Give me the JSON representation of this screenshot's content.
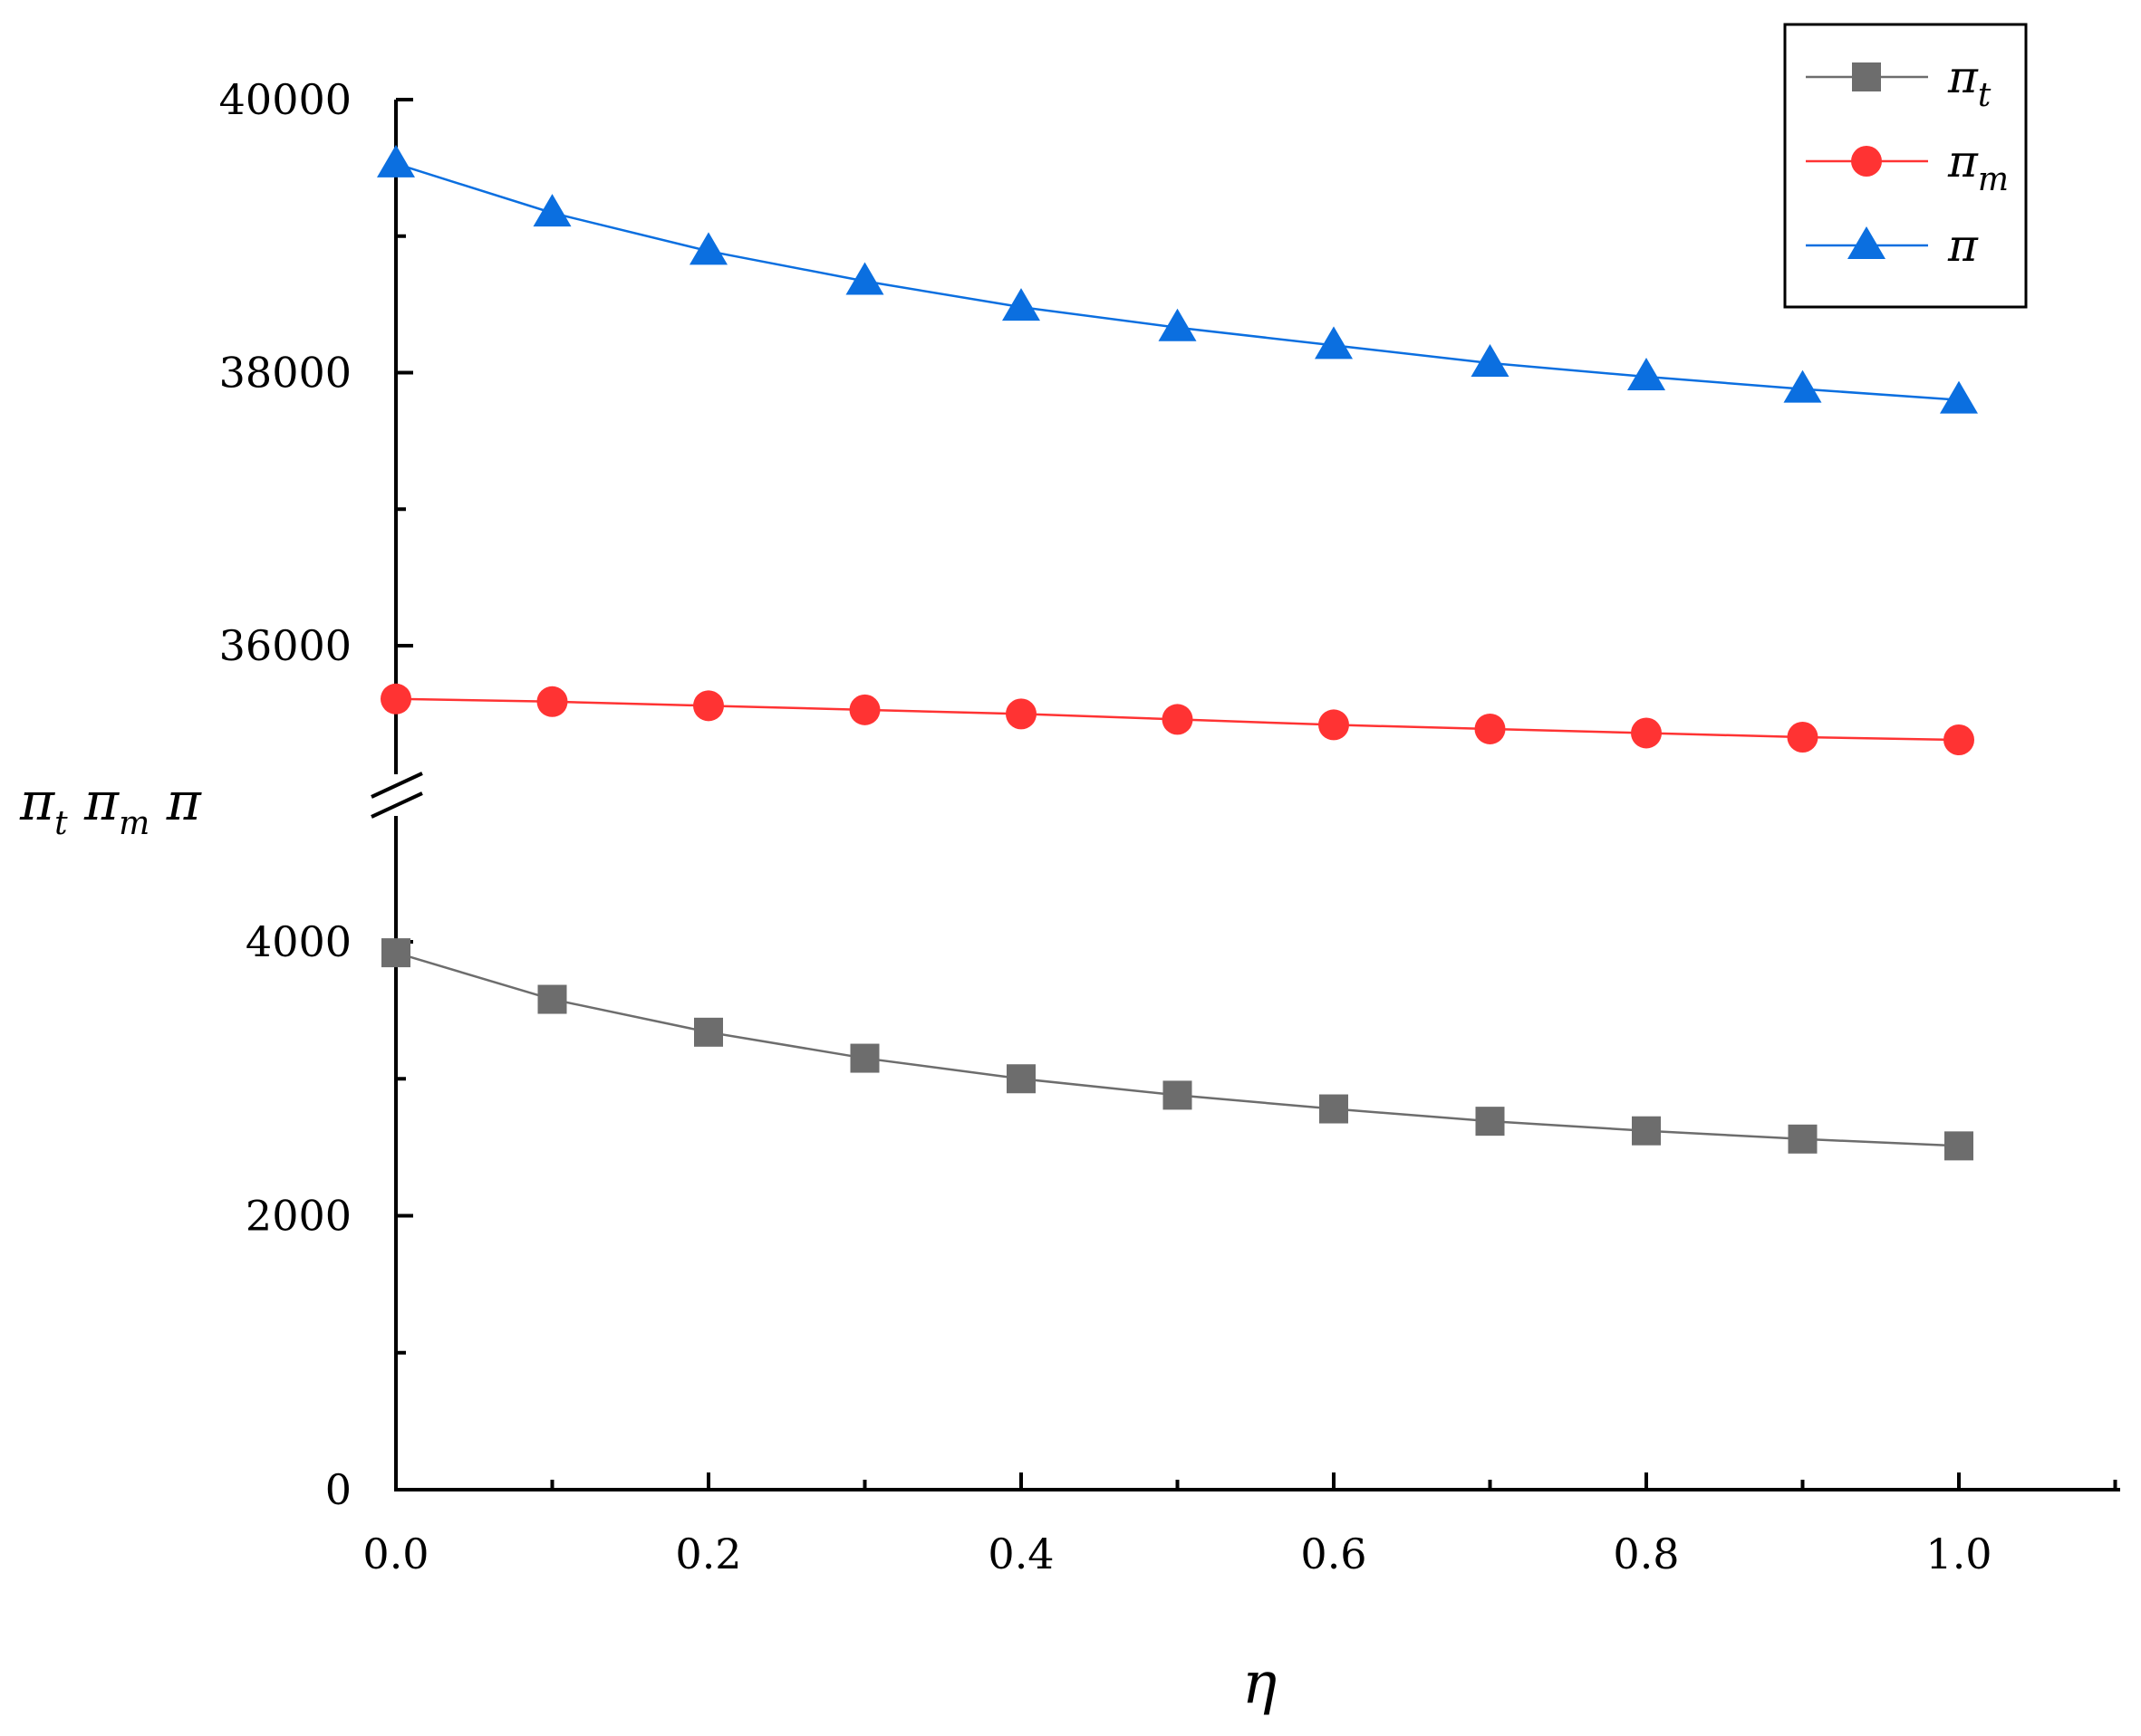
{
  "chart_data": {
    "type": "line",
    "x_label": "η",
    "y_label_parts": [
      {
        "base": "π",
        "sub": "t"
      },
      {
        "base": "π",
        "sub": "m"
      },
      {
        "base": "π",
        "sub": ""
      }
    ],
    "x": [
      0.0,
      0.1,
      0.2,
      0.3,
      0.4,
      0.5,
      0.6,
      0.7,
      0.8,
      0.9,
      1.0
    ],
    "x_ticks": [
      "0.0",
      "0.2",
      "0.4",
      "0.6",
      "0.8",
      "1.0"
    ],
    "xlim": [
      0.0,
      1.1
    ],
    "y_axis_break": true,
    "y_segments": {
      "lower": {
        "range": [
          0,
          4800
        ],
        "ticks": [
          "0",
          "2000",
          "4000"
        ]
      },
      "upper": {
        "range": [
          35100,
          40200
        ],
        "ticks": [
          "36000",
          "38000",
          "40000"
        ]
      }
    },
    "series": [
      {
        "name": "π_t",
        "legend_base": "π",
        "legend_sub": "t",
        "color": "#6d6d6d",
        "marker": "square",
        "segment": "lower",
        "values": [
          3920,
          3580,
          3340,
          3150,
          3000,
          2880,
          2780,
          2690,
          2620,
          2560,
          2510
        ]
      },
      {
        "name": "π_m",
        "legend_base": "π",
        "legend_sub": "m",
        "color": "#ff3333",
        "marker": "circle",
        "segment": "upper",
        "values": [
          35610,
          35590,
          35560,
          35530,
          35500,
          35460,
          35420,
          35390,
          35360,
          35330,
          35310
        ]
      },
      {
        "name": "π",
        "legend_base": "π",
        "legend_sub": "",
        "color": "#0b6fe0",
        "marker": "triangle",
        "segment": "upper",
        "values": [
          39530,
          39170,
          38890,
          38670,
          38480,
          38330,
          38200,
          38070,
          37970,
          37880,
          37800
        ]
      }
    ]
  }
}
